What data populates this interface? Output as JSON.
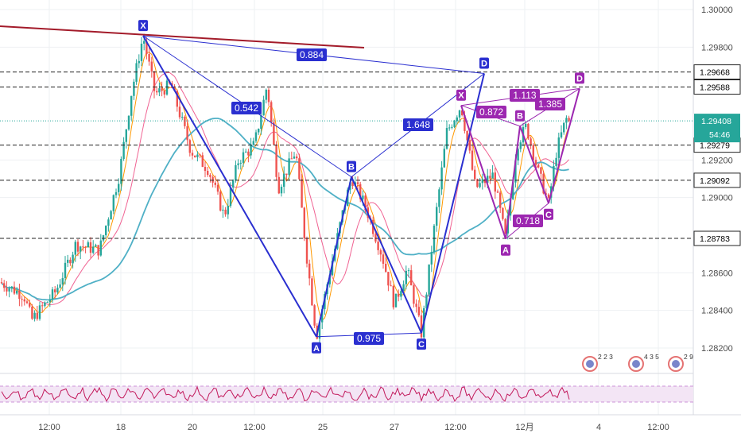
{
  "colors": {
    "bull": "#26a69a",
    "bear": "#ef5350",
    "ma_fast": "#ff9800",
    "ma_mid": "#f06292",
    "ma_slow": "#4fb0c6",
    "pattern1": "#2a2fd0",
    "pattern2": "#9c27b0",
    "trendline": "#a31b2a",
    "current_price": "#26a69a",
    "rsi_line": "#c2185b",
    "rsi_band": "#f3e5f5"
  },
  "chart_data": {
    "type": "candlestick",
    "y_ticks": [
      "1.30000",
      "1.29800",
      "1.29200",
      "1.29000",
      "1.28600",
      "1.28400",
      "1.28200"
    ],
    "x_ticks": [
      "12:00",
      "18",
      "20",
      "12:00",
      "25",
      "27",
      "12:00",
      "12月",
      "4",
      "12:00"
    ],
    "ylim": [
      1.2808,
      1.3005
    ],
    "current_price": "1.29408",
    "countdown": "54:46",
    "price_levels": [
      {
        "value": "1.29668",
        "style": "dashed"
      },
      {
        "value": "1.29588",
        "style": "dashed"
      },
      {
        "value": "1.29279",
        "style": "dashed"
      },
      {
        "value": "1.29092",
        "style": "dashed"
      },
      {
        "value": "1.28783",
        "style": "dashed"
      }
    ],
    "patterns": [
      {
        "name": "bat-large",
        "points": [
          {
            "label": "X",
            "price": 1.2986
          },
          {
            "label": "A",
            "price": 1.2826
          },
          {
            "label": "B",
            "price": 1.2911
          },
          {
            "label": "C",
            "price": 1.2828
          },
          {
            "label": "D",
            "price": 1.2966
          }
        ],
        "ratios": [
          "0.542",
          "0.975",
          "1.648",
          "0.884"
        ]
      },
      {
        "name": "bat-small",
        "points": [
          {
            "label": "X",
            "price": 1.2949
          },
          {
            "label": "A",
            "price": 1.2878
          },
          {
            "label": "B",
            "price": 1.2938
          },
          {
            "label": "C",
            "price": 1.2897
          },
          {
            "label": "D",
            "price": 1.2958
          }
        ],
        "ratios": [
          "0.872",
          "1.113",
          "0.718",
          "1.385"
        ]
      }
    ],
    "indicator_labels": [
      "2 2 3",
      "4 3 5",
      "2 9"
    ]
  }
}
